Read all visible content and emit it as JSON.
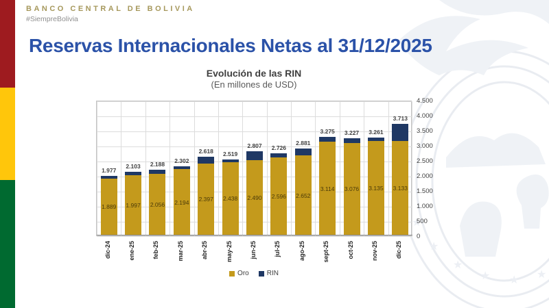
{
  "brand": {
    "name": "BANCO CENTRAL DE BOLIVIA",
    "hashtag": "#SiempreBolivia"
  },
  "page_title": "Reservas Internacionales Netas al 31/12/2025",
  "flag_colors": {
    "red": "#9E1B1F",
    "yellow": "#FFC60B",
    "green": "#006A30"
  },
  "accent_colors": {
    "title_blue": "#2B52A8",
    "brand_gold": "#A6985C"
  },
  "chart_data": {
    "type": "bar",
    "stacked": true,
    "title": "Evolución de las RIN",
    "subtitle": "(En millones de USD)",
    "categories": [
      "dic-24",
      "ene-25",
      "feb-25",
      "mar-25",
      "abr-25",
      "may-25",
      "jun-25",
      "jul-25",
      "ago-25",
      "sept-25",
      "oct-25",
      "nov-25",
      "dic-25"
    ],
    "series": [
      {
        "name": "Oro",
        "color": "#C49A1C",
        "values": [
          1889,
          1997,
          2056,
          2194,
          2397,
          2438,
          2490,
          2596,
          2652,
          3114,
          3076,
          3135,
          3133
        ],
        "labels": [
          "1.889",
          "1.997",
          "2.056",
          "2.194",
          "2.397",
          "2.438",
          "2.490",
          "2.596",
          "2.652",
          "3.114",
          "3.076",
          "3.135",
          "3.133"
        ]
      },
      {
        "name": "RIN",
        "color": "#1F3864",
        "values": [
          1977,
          2103,
          2188,
          2302,
          2618,
          2519,
          2807,
          2726,
          2881,
          3275,
          3227,
          3261,
          3713
        ],
        "labels": [
          "1.977",
          "2.103",
          "2.188",
          "2.302",
          "2.618",
          "2.519",
          "2.807",
          "2.726",
          "2.881",
          "3.275",
          "3.227",
          "3.261",
          "3.713"
        ]
      }
    ],
    "ylim": [
      0,
      4500
    ],
    "y_tick_step": 500,
    "y_ticks": [
      "4.500",
      "4.000",
      "3.500",
      "3.000",
      "2.500",
      "2.000",
      "1.500",
      "1.000",
      "500",
      "0"
    ],
    "grid": true,
    "legend_position": "bottom",
    "note": "RIN series values are totals; navy segment drawn as RIN minus Oro on top of gold"
  }
}
